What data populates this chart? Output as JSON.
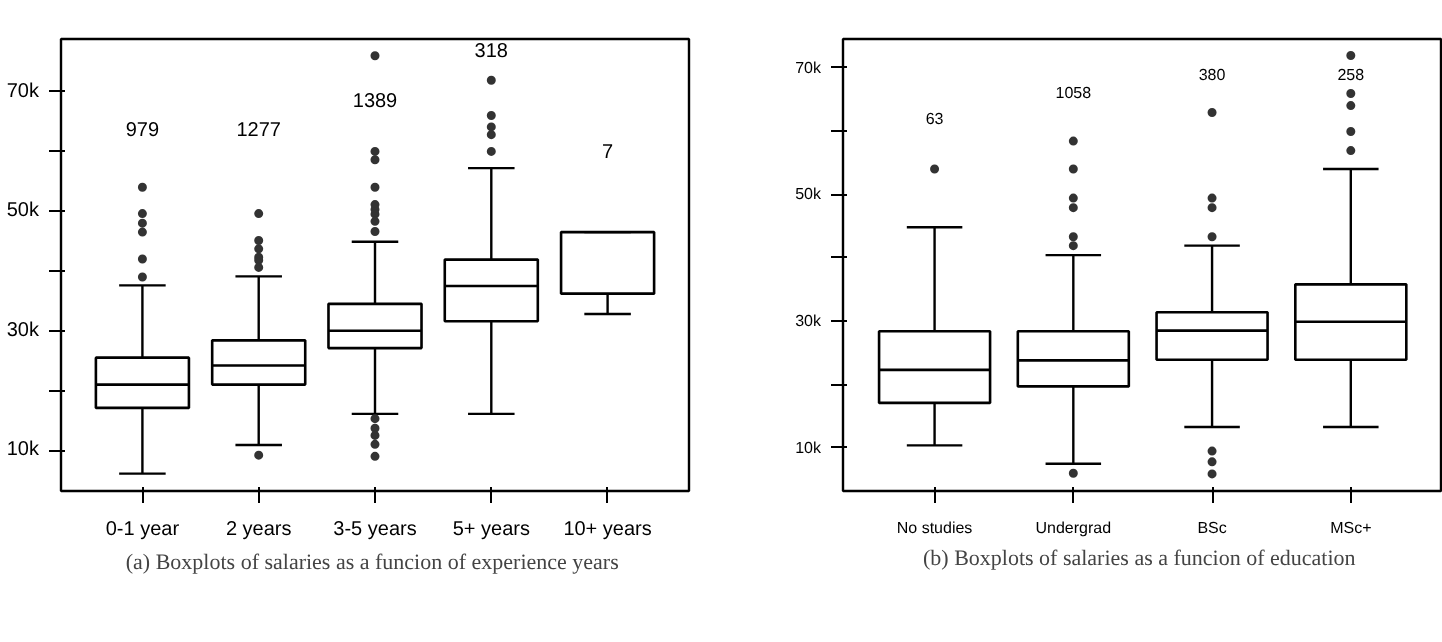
{
  "chart_data": [
    {
      "type": "box",
      "categories": [
        "0-1 year",
        "2 years",
        "3-5 years",
        "5+ years",
        "10+ years"
      ],
      "boxes": [
        {
          "low": 6100,
          "q1": 17100,
          "median": 21000,
          "q3": 25500,
          "high": 37600,
          "outliers": [
            54000,
            49600,
            48000,
            46500,
            42000,
            39000
          ]
        },
        {
          "low": 10900,
          "q1": 21000,
          "median": 24200,
          "q3": 28400,
          "high": 39100,
          "outliers": [
            49600,
            45100,
            43700,
            42300,
            41800,
            40600,
            9200
          ]
        },
        {
          "low": 16100,
          "q1": 27100,
          "median": 30000,
          "q3": 34500,
          "high": 44900,
          "outliers": [
            76000,
            60000,
            58600,
            54000,
            51100,
            50300,
            49500,
            48300,
            46600,
            15300,
            13700,
            12500,
            11000,
            9000
          ]
        },
        {
          "low": 16100,
          "q1": 31600,
          "median": 37500,
          "q3": 41900,
          "high": 57200,
          "outliers": [
            71900,
            66000,
            64100,
            62800,
            60000
          ]
        },
        {
          "low": 32800,
          "q1": 36200,
          "median": 36200,
          "q3": 46500,
          "high": 46500
        }
      ],
      "ylim": [
        3200,
        78800
      ],
      "yticks": [
        {
          "value": 10000,
          "label": "10k"
        },
        {
          "value": 20000,
          "label": null
        },
        {
          "value": 30000,
          "label": "30k"
        },
        {
          "value": 40000,
          "label": null
        },
        {
          "value": 50000,
          "label": "50k"
        },
        {
          "value": 60000,
          "label": null
        },
        {
          "value": 70000,
          "label": "70k"
        }
      ],
      "grid": false,
      "annotations": [
        "979",
        "1277",
        "1389",
        "318",
        "7",
        "(a)  Boxplots of salaries as a funcion of experience years"
      ]
    },
    {
      "type": "box",
      "categories": [
        "No studies",
        "Undergrad",
        "BSc",
        "MSc+"
      ],
      "boxes": [
        {
          "low": 10400,
          "q1": 17100,
          "median": 22300,
          "q3": 28400,
          "high": 44800,
          "outliers": [
            54000
          ]
        },
        {
          "low": 7500,
          "q1": 19700,
          "median": 23800,
          "q3": 28400,
          "high": 40400,
          "outliers": [
            58400,
            54000,
            49400,
            47900,
            43300,
            41900,
            6000
          ]
        },
        {
          "low": 13300,
          "q1": 23900,
          "median": 28500,
          "q3": 31400,
          "high": 41900,
          "outliers": [
            62900,
            49400,
            47900,
            43300,
            9500,
            7800,
            5900
          ]
        },
        {
          "low": 13300,
          "q1": 23900,
          "median": 29900,
          "q3": 35800,
          "high": 54000,
          "outliers": [
            71900,
            65900,
            64000,
            59900,
            56900
          ]
        }
      ],
      "ylim": [
        3200,
        74500
      ],
      "yticks": [
        {
          "value": 10000,
          "label": "10k"
        },
        {
          "value": 20000,
          "label": null
        },
        {
          "value": 30000,
          "label": "30k"
        },
        {
          "value": 40000,
          "label": null
        },
        {
          "value": 50000,
          "label": "50k"
        },
        {
          "value": 60000,
          "label": null
        },
        {
          "value": 70000,
          "label": "70k"
        }
      ],
      "grid": false,
      "annotations": [
        "63",
        "1058",
        "380",
        "258",
        "(b)  Boxplots of salaries as a funcion of education"
      ]
    }
  ]
}
